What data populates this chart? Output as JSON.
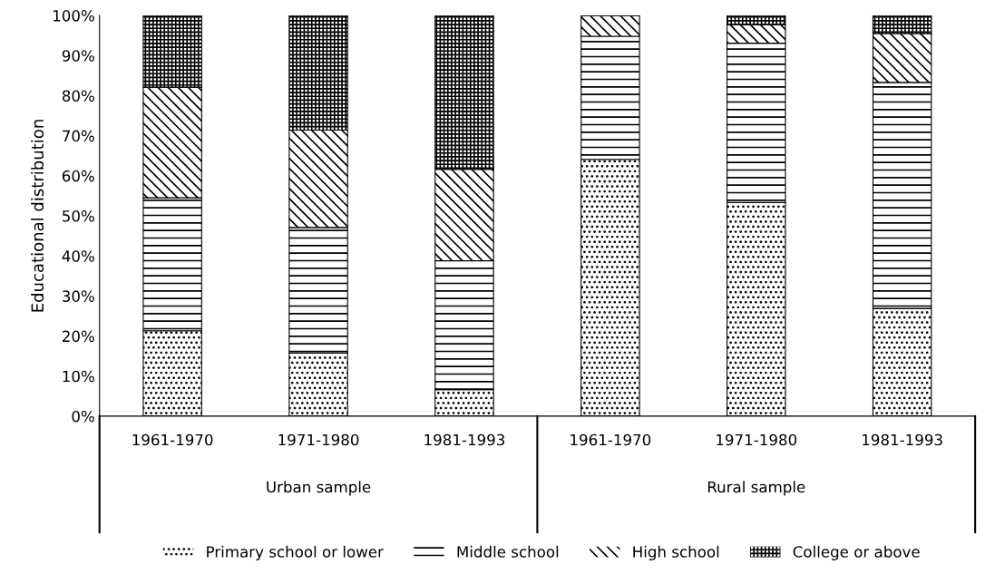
{
  "chart_data": {
    "type": "bar",
    "stacked": true,
    "ylabel": "Educational distribution",
    "categories": [
      "1961-1970",
      "1971-1980",
      "1981-1993",
      "1961-1970",
      "1971-1980",
      "1981-1993"
    ],
    "series": [
      {
        "name": "Primary school or lower",
        "color": "#000000",
        "values": [
          21.3,
          15.8,
          6.6,
          64.1,
          53.3,
          26.9
        ]
      },
      {
        "name": "Middle school",
        "color": "#000000",
        "values": [
          33.2,
          31.3,
          32.2,
          30.7,
          39.8,
          56.4
        ]
      },
      {
        "name": "High school",
        "color": "#000000",
        "values": [
          27.6,
          24.3,
          22.8,
          5.2,
          4.6,
          12.2
        ]
      },
      {
        "name": "College or above",
        "color": "#000000",
        "values": [
          17.9,
          28.6,
          38.4,
          0,
          2.3,
          4.5
        ]
      }
    ],
    "annotations": [
      "Urban sample",
      "Rural sample"
    ],
    "ylim": [
      0,
      100
    ],
    "yticks": [
      {
        "value": 0,
        "label": "0%"
      },
      {
        "value": 10,
        "label": "10%"
      },
      {
        "value": 20,
        "label": "20%"
      },
      {
        "value": 30,
        "label": "30%"
      },
      {
        "value": 40,
        "label": "40%"
      },
      {
        "value": 50,
        "label": "50%"
      },
      {
        "value": 60,
        "label": "60%"
      },
      {
        "value": 70,
        "label": "70%"
      },
      {
        "value": 80,
        "label": "80%"
      },
      {
        "value": 90,
        "label": "90%"
      },
      {
        "value": 100,
        "label": "100%"
      }
    ],
    "grid": false,
    "legend": "bottom"
  }
}
